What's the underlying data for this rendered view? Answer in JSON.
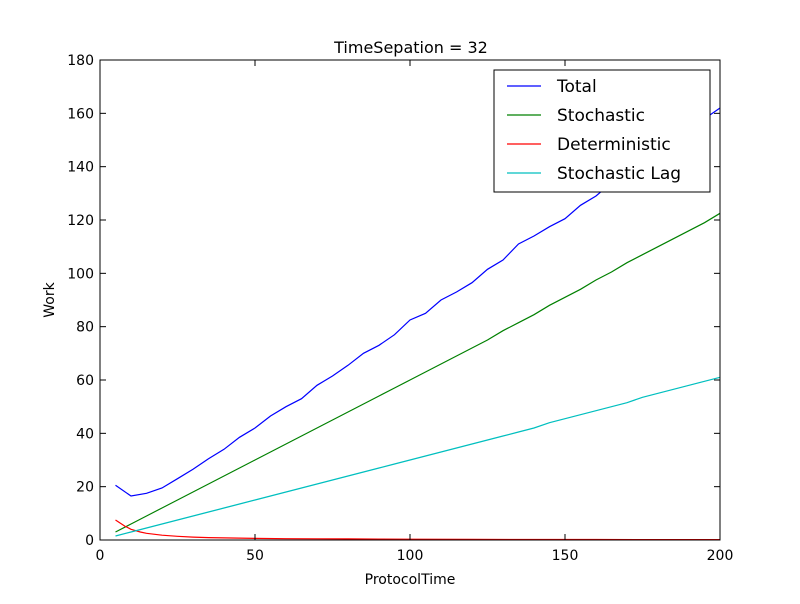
{
  "chart_data": {
    "type": "line",
    "title": "TimeSepation = 32",
    "xlabel": "ProtocolTime",
    "ylabel": "Work",
    "xlim": [
      0,
      200
    ],
    "ylim": [
      0,
      180
    ],
    "xticks": [
      0,
      50,
      100,
      150,
      200
    ],
    "yticks": [
      0,
      20,
      40,
      60,
      80,
      100,
      120,
      140,
      160,
      180
    ],
    "grid": false,
    "legend_position": "top-right",
    "series": [
      {
        "name": "Total",
        "color": "#0000ff",
        "x": [
          5,
          10,
          15,
          20,
          25,
          30,
          35,
          40,
          45,
          50,
          55,
          60,
          65,
          70,
          75,
          80,
          85,
          90,
          95,
          100,
          105,
          110,
          115,
          120,
          125,
          130,
          135,
          140,
          145,
          150,
          155,
          160,
          165,
          170,
          175,
          180,
          185,
          190,
          195,
          200
        ],
        "y": [
          20.5,
          16.5,
          17.5,
          19.5,
          23,
          26.5,
          30.5,
          34,
          38.5,
          42,
          46.5,
          50,
          53,
          58,
          61.5,
          65.5,
          70,
          73,
          77,
          82.5,
          85,
          90,
          93,
          96.5,
          101.5,
          105,
          111,
          114,
          117.5,
          120.5,
          125.5,
          129,
          134,
          138,
          142,
          146.5,
          150.5,
          154,
          158,
          162
        ]
      },
      {
        "name": "Stochastic",
        "color": "#008000",
        "x": [
          5,
          10,
          15,
          20,
          25,
          30,
          35,
          40,
          45,
          50,
          55,
          60,
          65,
          70,
          75,
          80,
          85,
          90,
          95,
          100,
          105,
          110,
          115,
          120,
          125,
          130,
          135,
          140,
          145,
          150,
          155,
          160,
          165,
          170,
          175,
          180,
          185,
          190,
          195,
          200
        ],
        "y": [
          3,
          6,
          9,
          12,
          15,
          18,
          21,
          24,
          27,
          30,
          33,
          36,
          39,
          42,
          45,
          48,
          51,
          54,
          57,
          60,
          63,
          66,
          69,
          72,
          75,
          78.5,
          81.5,
          84.5,
          88,
          91,
          94,
          97.5,
          100.5,
          104,
          107,
          110,
          113,
          116,
          119,
          122.5
        ]
      },
      {
        "name": "Deterministic",
        "color": "#ff0000",
        "x": [
          5,
          8,
          10,
          13,
          15,
          20,
          25,
          30,
          35,
          40,
          50,
          60,
          70,
          80,
          90,
          100,
          120,
          140,
          160,
          180,
          200
        ],
        "y": [
          7.5,
          5.2,
          4,
          3,
          2.5,
          1.8,
          1.4,
          1.1,
          0.9,
          0.8,
          0.6,
          0.5,
          0.45,
          0.4,
          0.35,
          0.3,
          0.25,
          0.2,
          0.2,
          0.15,
          0.15
        ]
      },
      {
        "name": "Stochastic Lag",
        "color": "#00bfbf",
        "x": [
          5,
          10,
          15,
          20,
          25,
          30,
          35,
          40,
          45,
          50,
          55,
          60,
          65,
          70,
          75,
          80,
          85,
          90,
          95,
          100,
          105,
          110,
          115,
          120,
          125,
          130,
          135,
          140,
          145,
          150,
          155,
          160,
          165,
          170,
          175,
          180,
          185,
          190,
          195,
          200
        ],
        "y": [
          1.5,
          3,
          4.5,
          6,
          7.5,
          9,
          10.5,
          12,
          13.5,
          15,
          16.5,
          18,
          19.5,
          21,
          22.5,
          24,
          25.5,
          27,
          28.5,
          30,
          31.5,
          33,
          34.5,
          36,
          37.5,
          39,
          40.5,
          42,
          44,
          45.5,
          47,
          48.5,
          50,
          51.5,
          53.5,
          55,
          56.5,
          58,
          59.5,
          61
        ]
      }
    ]
  }
}
